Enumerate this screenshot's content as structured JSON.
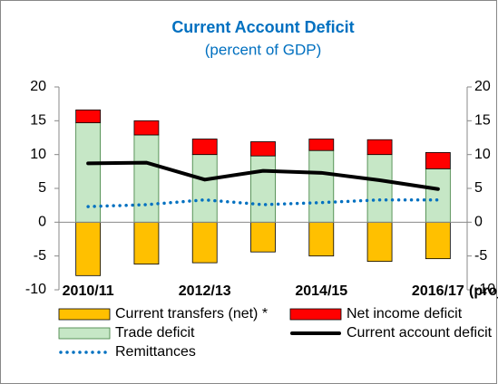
{
  "chart_data": {
    "type": "bar",
    "title": "Current Account Deficit",
    "subtitle": "(percent of GDP)",
    "categories": [
      "2010/11",
      null,
      "2012/13",
      null,
      "2014/15",
      null,
      "2016/17"
    ],
    "annotation": "(proj)",
    "series": [
      {
        "name": "Current transfers (net) *",
        "type": "bar",
        "color": "#ffc000",
        "values": [
          -7.9,
          -6.2,
          -6.0,
          -4.4,
          -5.0,
          -5.8,
          -5.4
        ]
      },
      {
        "name": "Trade deficit",
        "type": "bar",
        "color": "#c6e7c6",
        "values": [
          14.7,
          12.9,
          10.0,
          9.8,
          10.6,
          10.0,
          7.9
        ]
      },
      {
        "name": "Net income deficit",
        "type": "bar",
        "color": "#ff0000",
        "values": [
          1.9,
          2.1,
          2.3,
          2.1,
          1.7,
          2.2,
          2.4
        ]
      },
      {
        "name": "Current account deficit",
        "type": "line",
        "color": "#000000",
        "values": [
          8.7,
          8.8,
          6.3,
          7.6,
          7.3,
          6.2,
          4.9
        ]
      },
      {
        "name": "Remittances",
        "type": "line",
        "style": "dotted",
        "color": "#0070c0",
        "values": [
          2.3,
          2.6,
          3.3,
          2.6,
          2.9,
          3.3,
          3.3
        ]
      }
    ],
    "ylim": [
      -10,
      20
    ],
    "yticks": [
      -10,
      -5,
      0,
      5,
      10,
      15,
      20
    ],
    "y2lim": [
      -10,
      20
    ],
    "y2ticks": [
      -10,
      -5,
      0,
      5,
      10,
      15,
      20
    ]
  }
}
